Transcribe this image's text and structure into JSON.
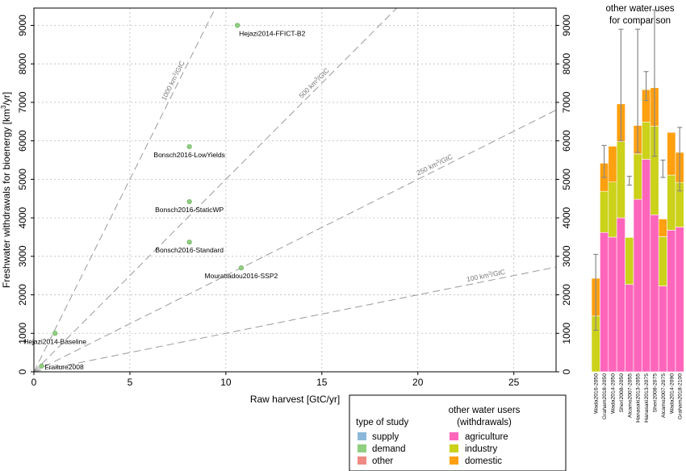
{
  "chart_data": [
    {
      "type": "scatter",
      "xlabel": "Raw harvest [GtC/yr]",
      "ylabel_main": "Freshwater withdrawals for bioenergy [km",
      "ylabel_sup": "3",
      "ylabel_tail": "/yr]",
      "xlim": [
        0,
        27.2
      ],
      "ylim": [
        0,
        9450
      ],
      "x_ticks": [
        0,
        5,
        10,
        15,
        20,
        25
      ],
      "y_ticks": [
        0,
        1000,
        2000,
        3000,
        4000,
        5000,
        6000,
        7000,
        8000,
        9000
      ],
      "grid": true,
      "reference_lines": [
        {
          "slope": 1000,
          "label_main": "1000 km",
          "label_sup": "3",
          "label_tail": "/GtC",
          "label_x": 7.5
        },
        {
          "slope": 500,
          "label_main": "500 km",
          "label_sup": "3",
          "label_tail": "/GtC",
          "label_x": 14.8
        },
        {
          "slope": 250,
          "label_main": "250 km",
          "label_sup": "3",
          "label_tail": "/GtC",
          "label_x": 21.0
        },
        {
          "slope": 100,
          "label_main": "100 km",
          "label_sup": "3",
          "label_tail": "/GtC",
          "label_x": 23.6
        }
      ],
      "points": [
        {
          "label": "Hejazi2014-FFICT-B2",
          "x": 10.6,
          "y": 9000,
          "label_pos": "below-right"
        },
        {
          "label": "Bonsch2016-LowYields",
          "x": 8.1,
          "y": 5850,
          "label_pos": "below-left"
        },
        {
          "label": "Bonsch2016-StaticWP",
          "x": 8.1,
          "y": 4420,
          "label_pos": "below-left"
        },
        {
          "label": "Bonsch2016-Standard",
          "x": 8.1,
          "y": 3370,
          "label_pos": "below-left"
        },
        {
          "label": "Mouratiadou2016-SSP2",
          "x": 10.8,
          "y": 2700,
          "label_pos": "below-left"
        },
        {
          "label": "Hejazi2014-Baseline",
          "x": 1.1,
          "y": 1000,
          "label_pos": "below-left"
        },
        {
          "label": "Fraiture2008",
          "x": 0.4,
          "y": 150,
          "label_pos": "right"
        }
      ],
      "point_color": "#8fcf7f"
    },
    {
      "type": "bar",
      "stacked": true,
      "title_lines": [
        "other water uses",
        "for comparison"
      ],
      "ylim": [
        0,
        9450
      ],
      "y_ticks": [
        0,
        1000,
        2000,
        3000,
        4000,
        5000,
        6000,
        7000,
        8000,
        9000
      ],
      "categories": [
        "Wada2016-2050",
        "Graham2018-2050",
        "Wada2014-2050",
        "Sheri2008-2050",
        "Alcamo2007-2055",
        "Hanasaki2013-2055",
        "Hanasaki2013-2075",
        "Sheri2008-2075",
        "Alcamo2007-2075",
        "Wada2014-2090",
        "Graham2018-2100"
      ],
      "series": [
        {
          "name": "agriculture",
          "values": [
            0,
            3620,
            3500,
            4000,
            2270,
            4480,
            5520,
            4080,
            2230,
            3680,
            3760
          ]
        },
        {
          "name": "industry",
          "values": [
            1450,
            1070,
            1430,
            1980,
            1220,
            1180,
            970,
            2300,
            1280,
            1430,
            1160
          ]
        },
        {
          "name": "domestic",
          "values": [
            980,
            730,
            930,
            980,
            0,
            740,
            840,
            1000,
            460,
            1110,
            780
          ]
        }
      ],
      "error_bars": [
        {
          "low": 1080,
          "high": 3050
        },
        {
          "low": 5050,
          "high": 5880
        },
        null,
        {
          "low": 6000,
          "high": 8900
        },
        {
          "low": 4850,
          "high": 5080
        },
        {
          "low": 5700,
          "high": 8900
        },
        {
          "low": 7050,
          "high": 7800
        },
        {
          "low": 5600,
          "high": 9400
        },
        {
          "low": 5050,
          "high": 5500
        },
        null,
        {
          "low": 4700,
          "high": 6350
        }
      ]
    }
  ],
  "legend": {
    "study_title": "type of study",
    "study_items": [
      {
        "label": "supply",
        "color": "#8bb8d8"
      },
      {
        "label": "demand",
        "color": "#8fcf7f"
      },
      {
        "label": "other",
        "color": "#ef8a82"
      }
    ],
    "users_title_1": "other water users",
    "users_title_2": "(withdrawals)",
    "users_items": [
      {
        "label": "agriculture",
        "color": "#ff66bb"
      },
      {
        "label": "industry",
        "color": "#ccd11a"
      },
      {
        "label": "domestic",
        "color": "#ffa010"
      }
    ]
  },
  "colors": {
    "agriculture": "#ff66bb",
    "industry": "#ccd11a",
    "domestic": "#ffa010",
    "point": "#8fcf7f",
    "grid": "#bbbbbb",
    "refline": "#9a9a9a",
    "errorbar": "#888888"
  }
}
